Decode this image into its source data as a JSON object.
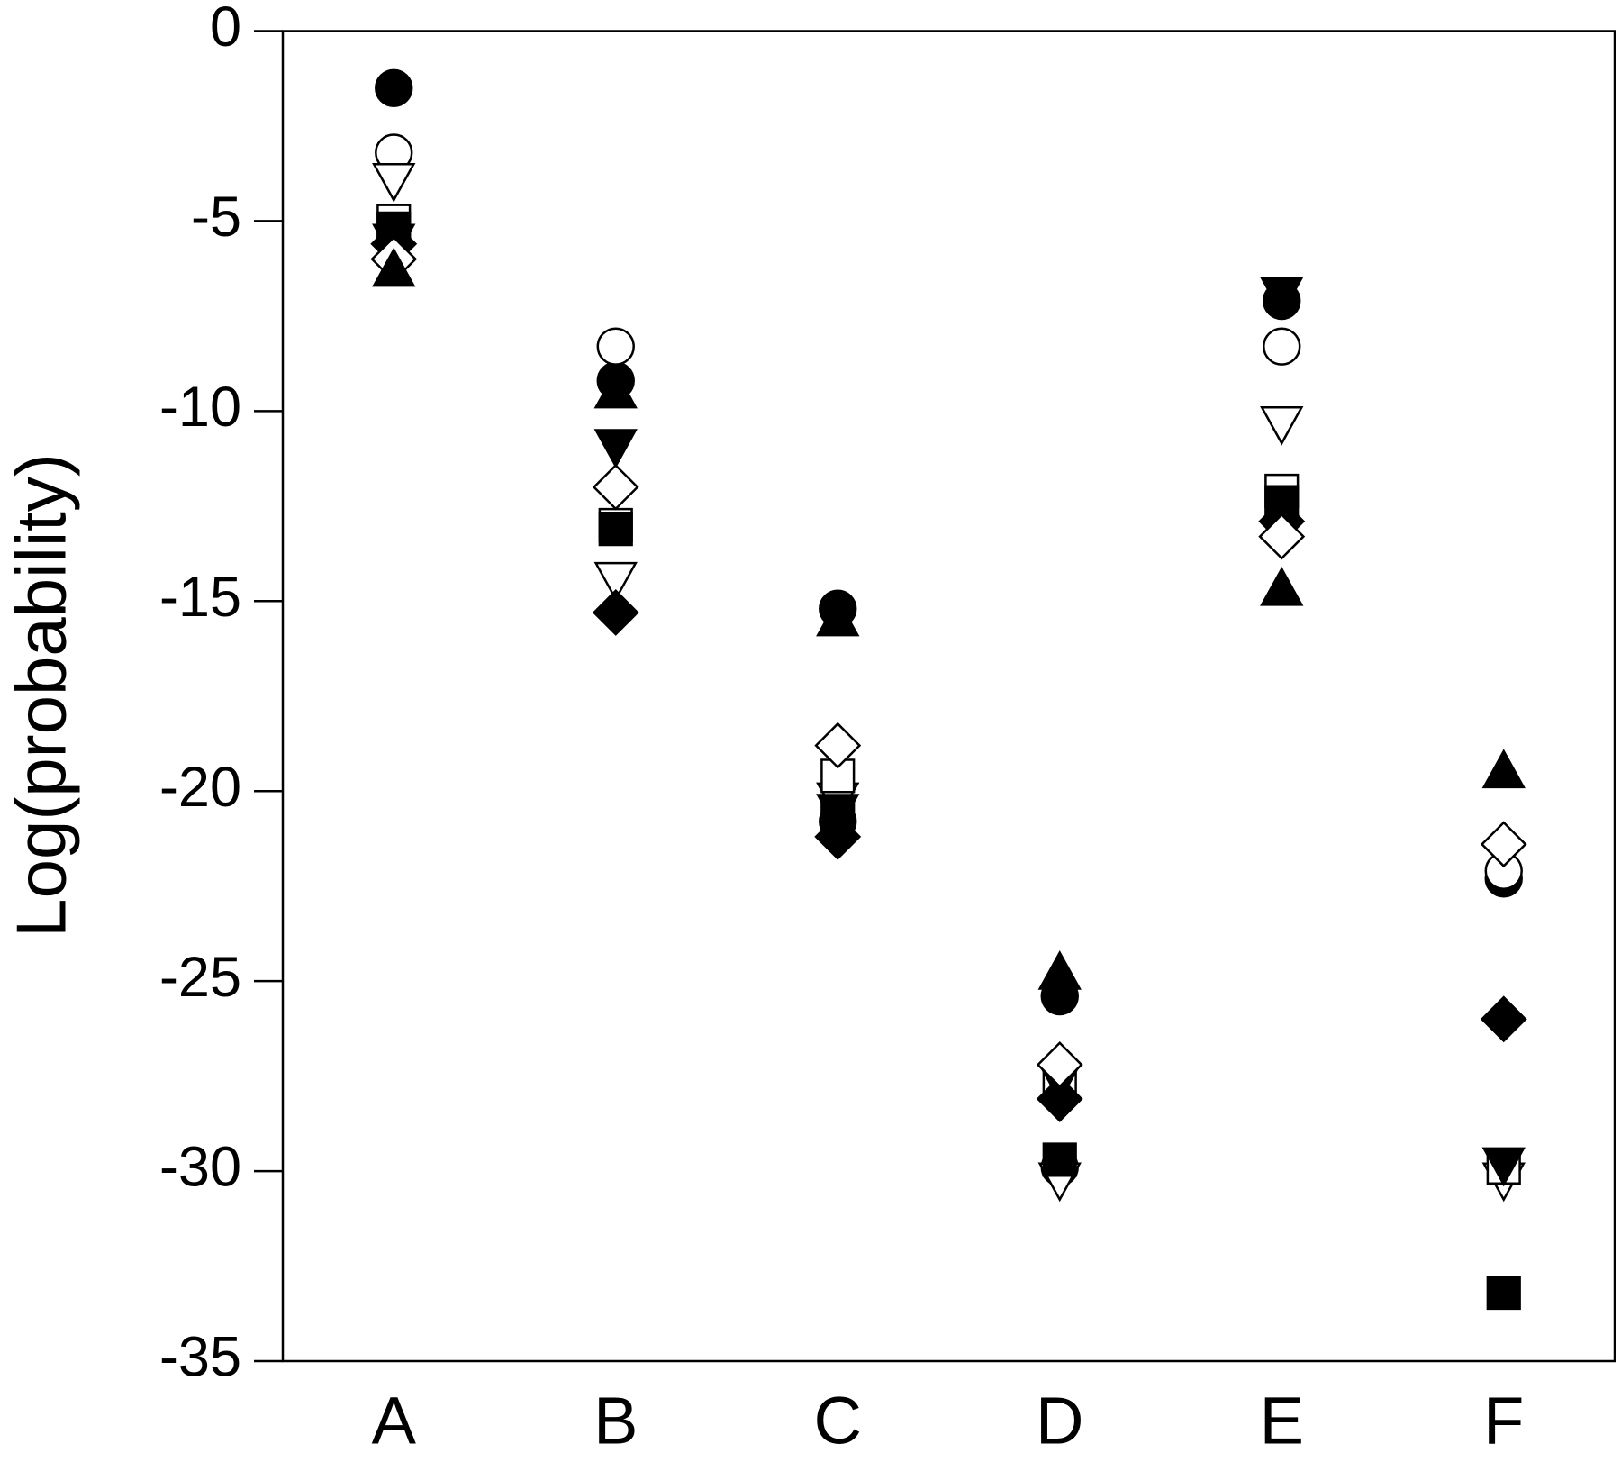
{
  "chart_data": {
    "type": "scatter",
    "y_label": "Log(probability)",
    "categories": [
      "A",
      "B",
      "C",
      "D",
      "E",
      "F"
    ],
    "ylim": [
      -35,
      0
    ],
    "yticks": [
      0,
      -5,
      -10,
      -15,
      -20,
      -25,
      -30,
      -35
    ],
    "series": [
      {
        "marker": "circle",
        "filled": true,
        "values": [
          -1.5,
          -9.2,
          -15.2,
          -25.4,
          -7.1,
          -22.3
        ]
      },
      {
        "marker": "circle",
        "filled": false,
        "values": [
          -3.2,
          -8.3,
          -20.8,
          -29.9,
          -8.3,
          -22.1
        ]
      },
      {
        "marker": "triangle-down",
        "filled": false,
        "values": [
          -3.9,
          -14.4,
          -20.2,
          -30.2,
          -10.3,
          -30.2
        ]
      },
      {
        "marker": "square",
        "filled": false,
        "values": [
          -5.0,
          -13.0,
          -19.6,
          -27.6,
          -12.1,
          -29.9
        ]
      },
      {
        "marker": "square",
        "filled": true,
        "values": [
          -5.2,
          -13.1,
          -20.6,
          -29.7,
          -12.4,
          -33.2
        ]
      },
      {
        "marker": "triangle-down",
        "filled": true,
        "values": [
          -5.5,
          -10.9,
          -20.5,
          -27.6,
          -6.9,
          -29.8
        ]
      },
      {
        "marker": "diamond",
        "filled": true,
        "values": [
          -5.6,
          -15.3,
          -21.2,
          -28.1,
          -12.9,
          -26.0
        ]
      },
      {
        "marker": "diamond",
        "filled": false,
        "values": [
          -6.0,
          -12.0,
          -18.8,
          -27.2,
          -13.3,
          -21.4
        ]
      },
      {
        "marker": "triangle-up",
        "filled": true,
        "values": [
          -6.3,
          -9.5,
          -15.5,
          -24.8,
          -14.7,
          -19.5
        ]
      }
    ]
  }
}
